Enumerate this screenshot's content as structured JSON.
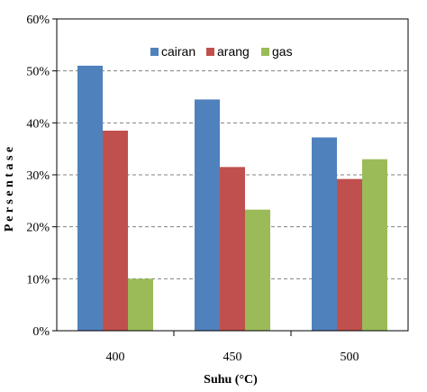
{
  "chart_data": {
    "type": "bar",
    "title": "",
    "xlabel": "Suhu (°C)",
    "ylabel": "P e r s e n t a s e",
    "categories": [
      "400",
      "450",
      "500"
    ],
    "series": [
      {
        "name": "cairan",
        "values": [
          0.51,
          0.445,
          0.372
        ],
        "color": "#4F81BD"
      },
      {
        "name": "arang",
        "values": [
          0.385,
          0.315,
          0.292
        ],
        "color": "#C0504D"
      },
      {
        "name": "gas",
        "values": [
          0.1,
          0.233,
          0.33
        ],
        "color": "#9BBB59"
      }
    ],
    "ylim": [
      0,
      0.6
    ],
    "yticks": [
      0,
      0.1,
      0.2,
      0.3,
      0.4,
      0.5,
      0.6
    ],
    "ytick_labels": [
      "0%",
      "10%",
      "20%",
      "30%",
      "40%",
      "50%",
      "60%"
    ],
    "grid": "horizontal dashed",
    "legend_position": "top-center"
  }
}
